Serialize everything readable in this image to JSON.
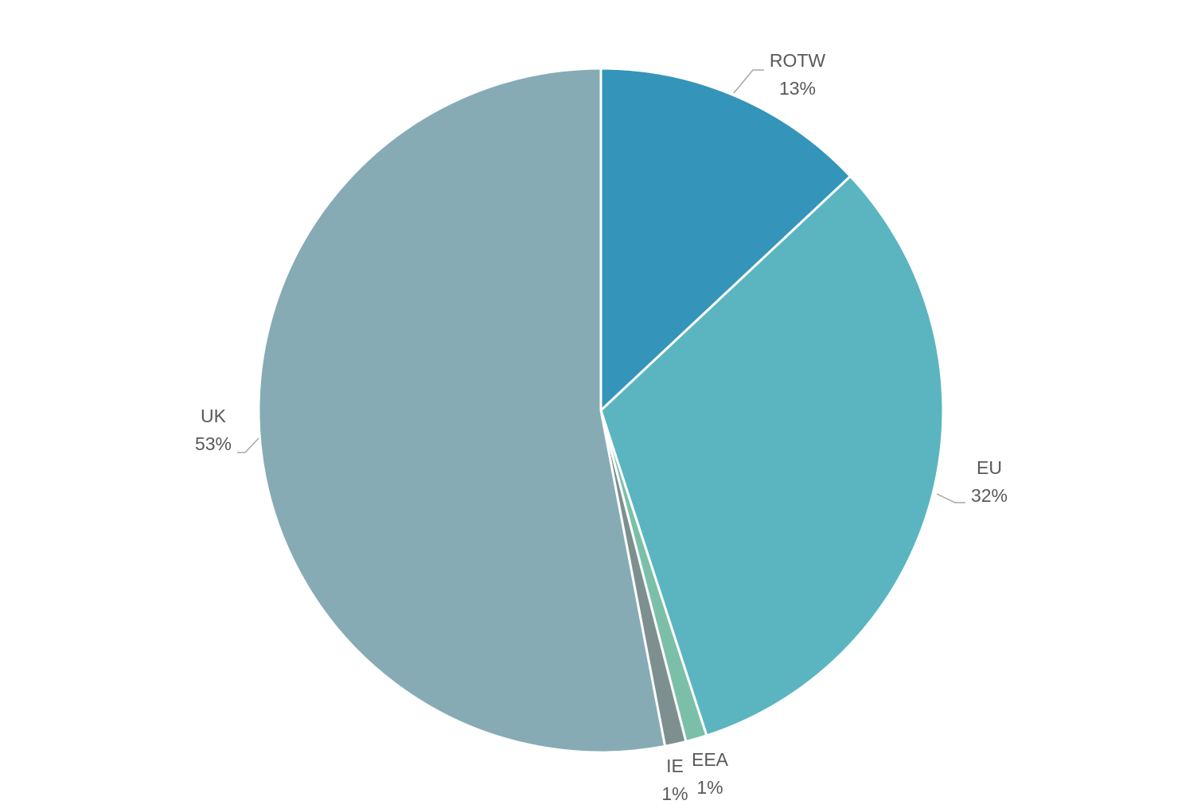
{
  "chart_data": {
    "type": "pie",
    "categories": [
      "ROTW",
      "EU",
      "EEA",
      "IE",
      "UK"
    ],
    "values": [
      13,
      32,
      1,
      1,
      53
    ],
    "value_labels": [
      "13%",
      "32%",
      "1%",
      "1%",
      "53%"
    ],
    "colors": [
      "#3594b9",
      "#5ab5c0",
      "#7bbfa9",
      "#7d8f8f",
      "#86abb4"
    ]
  }
}
